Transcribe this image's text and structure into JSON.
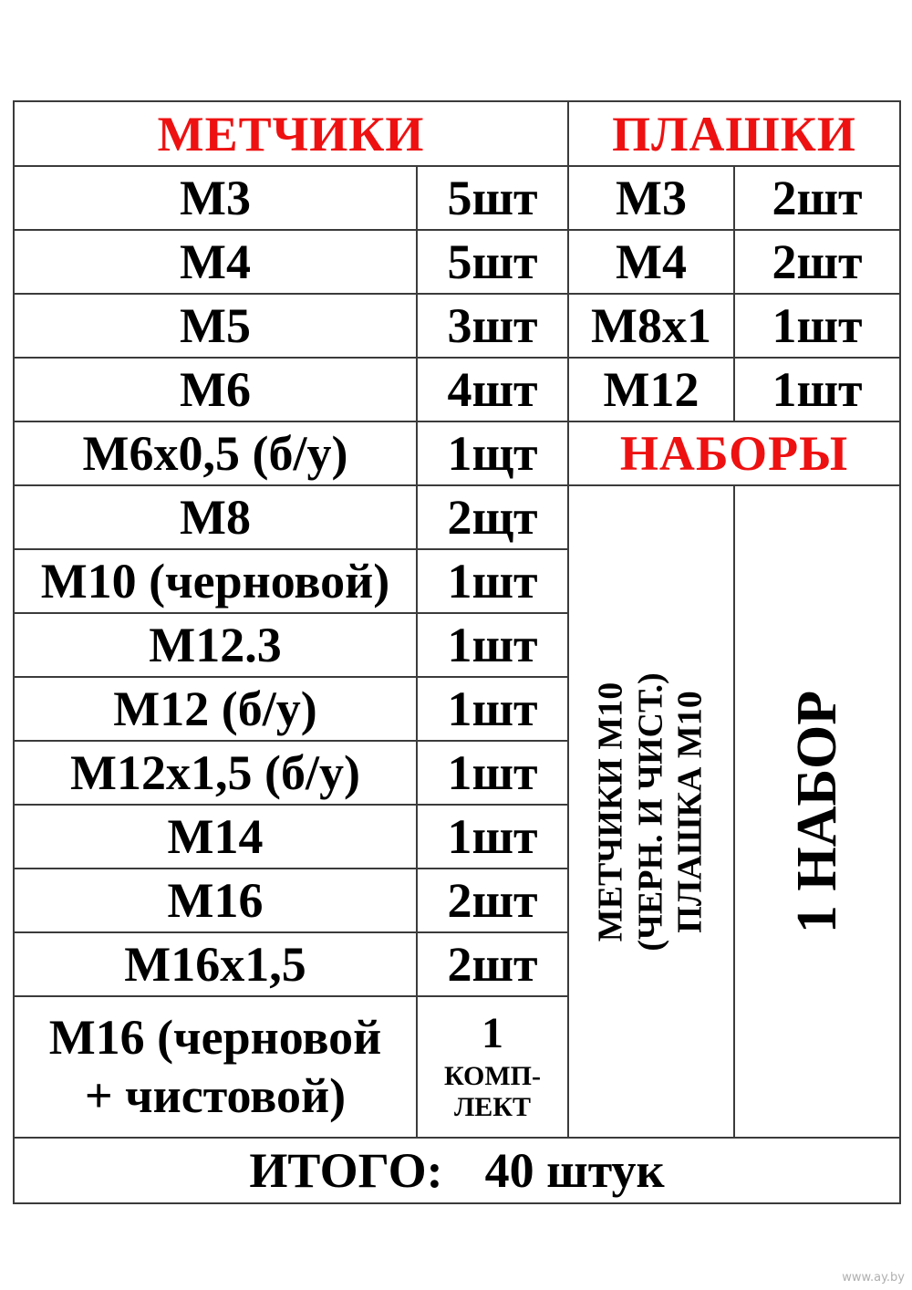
{
  "page": {
    "watermark": "www.ay.by"
  },
  "colors": {
    "accent_red": "#ee1111",
    "text_black": "#000000",
    "border_gray": "#3b3b3b",
    "watermark_gray": "#b0b0b0",
    "background": "#ffffff"
  },
  "table": {
    "headers": {
      "taps": "МЕТЧИКИ",
      "dies": "ПЛАШКИ",
      "sets": "НАБОРЫ"
    },
    "tap_rows": [
      {
        "name": "М3",
        "qty": "5шт"
      },
      {
        "name": "М4",
        "qty": "5шт"
      },
      {
        "name": "М5",
        "qty": "3шт"
      },
      {
        "name": "М6",
        "qty": "4шт"
      },
      {
        "name": "М6х0,5 (б/у)",
        "qty": "1щт"
      },
      {
        "name": "М8",
        "qty": "2щт"
      },
      {
        "name": "М10 (черновой)",
        "qty": "1шт"
      },
      {
        "name": "М12.3",
        "qty": "1шт"
      },
      {
        "name": "М12 (б/у)",
        "qty": "1шт"
      },
      {
        "name": "М12х1,5 (б/у)",
        "qty": "1шт"
      },
      {
        "name": "М14",
        "qty": "1шт"
      },
      {
        "name": "М16",
        "qty": "2шт"
      },
      {
        "name": "М16х1,5",
        "qty": "2шт"
      }
    ],
    "tap_last_row": {
      "name_line1": "М16 (черновой",
      "name_line2": "+ чистовой)",
      "qty_number": "1",
      "qty_word_line1": "КОМП-",
      "qty_word_line2": "ЛЕКТ"
    },
    "die_rows": [
      {
        "name": "М3",
        "qty": "2шт"
      },
      {
        "name": "М4",
        "qty": "2шт"
      },
      {
        "name": "М8х1",
        "qty": "1шт"
      },
      {
        "name": "М12",
        "qty": "1шт"
      }
    ],
    "sets_cell": {
      "line1": "МЕТЧИКИ М10",
      "line2": "(ЧЕРН. И ЧИСТ.)",
      "line3": "ПЛАШКА М10"
    },
    "sets_qty": "1 НАБОР",
    "total": {
      "label": "ИТОГО:",
      "value": "40 штук"
    }
  }
}
